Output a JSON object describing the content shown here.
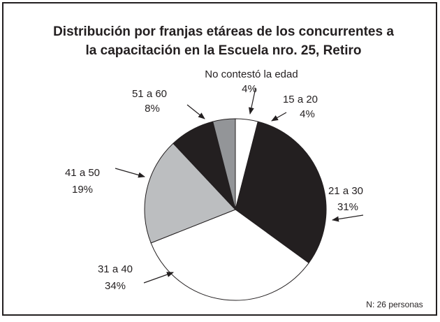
{
  "chart_data": {
    "type": "pie",
    "title": "Distribución por franjas etáreas de los concurrentes a la capacitación en la Escuela nro. 25, Retiro",
    "categories": [
      "15 a 20",
      "21 a 30",
      "31 a 40",
      "41 a 50",
      "51 a 60",
      "No contestó la edad"
    ],
    "values": [
      4,
      31,
      34,
      19,
      8,
      4
    ],
    "value_labels": [
      "4%",
      "31%",
      "34%",
      "19%",
      "8%",
      "4%"
    ],
    "colors": [
      "#ffffff",
      "#231f20",
      "#ffffff",
      "#bcbec0",
      "#231f20",
      "#939598"
    ],
    "annotation": "N: 26 personas"
  }
}
